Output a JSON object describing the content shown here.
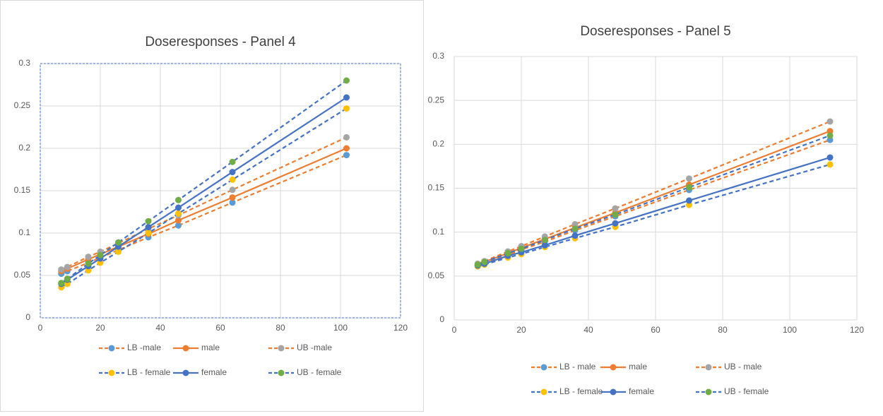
{
  "chart_data": [
    {
      "type": "line",
      "title": "Doseresponses - Panel 4",
      "x": [
        7,
        9,
        16,
        20,
        26,
        36,
        46,
        64,
        102
      ],
      "xlim": [
        0,
        120
      ],
      "xticks": [
        0,
        20,
        40,
        60,
        80,
        100,
        120
      ],
      "ylim": [
        0,
        0.3
      ],
      "yticks": [
        0,
        0.05,
        0.1,
        0.15,
        0.2,
        0.25,
        0.3
      ],
      "grid": true,
      "series": [
        {
          "name": "LB -male",
          "color": "#ED7D31",
          "marker_color": "#5B9BD5",
          "dashed": true,
          "values": [
            0.052,
            0.055,
            0.065,
            0.071,
            0.08,
            0.095,
            0.109,
            0.136,
            0.192
          ]
        },
        {
          "name": "male",
          "color": "#ED7D31",
          "marker_color": "#ED7D31",
          "dashed": false,
          "values": [
            0.055,
            0.058,
            0.069,
            0.075,
            0.084,
            0.099,
            0.115,
            0.142,
            0.2
          ]
        },
        {
          "name": "UB -male",
          "color": "#ED7D31",
          "marker_color": "#A5A5A5",
          "dashed": true,
          "values": [
            0.057,
            0.06,
            0.072,
            0.078,
            0.088,
            0.105,
            0.121,
            0.151,
            0.213
          ]
        },
        {
          "name": "LB - female",
          "color": "#4472C4",
          "marker_color": "#FFC000",
          "dashed": true,
          "values": [
            0.036,
            0.04,
            0.056,
            0.065,
            0.078,
            0.1,
            0.123,
            0.163,
            0.247
          ]
        },
        {
          "name": "female",
          "color": "#4472C4",
          "marker_color": "#4472C4",
          "dashed": false,
          "values": [
            0.04,
            0.045,
            0.061,
            0.07,
            0.084,
            0.107,
            0.13,
            0.172,
            0.26
          ]
        },
        {
          "name": "UB - female",
          "color": "#4472C4",
          "marker_color": "#70AD47",
          "dashed": true,
          "values": [
            0.041,
            0.046,
            0.064,
            0.074,
            0.089,
            0.114,
            0.139,
            0.184,
            0.28
          ]
        }
      ]
    },
    {
      "type": "line",
      "title": "Doseresponses - Panel 5",
      "x": [
        7,
        9,
        16,
        20,
        27,
        36,
        48,
        70,
        112
      ],
      "xlim": [
        0,
        120
      ],
      "xticks": [
        0,
        20,
        40,
        60,
        80,
        100,
        120
      ],
      "ylim": [
        0,
        0.3
      ],
      "yticks": [
        0,
        0.05,
        0.1,
        0.15,
        0.2,
        0.25,
        0.3
      ],
      "grid": true,
      "series": [
        {
          "name": "LB - male",
          "color": "#ED7D31",
          "marker_color": "#5B9BD5",
          "dashed": true,
          "values": [
            0.062,
            0.065,
            0.074,
            0.08,
            0.089,
            0.102,
            0.118,
            0.148,
            0.205
          ]
        },
        {
          "name": "male",
          "color": "#ED7D31",
          "marker_color": "#ED7D31",
          "dashed": false,
          "values": [
            0.063,
            0.066,
            0.076,
            0.082,
            0.092,
            0.105,
            0.122,
            0.154,
            0.215
          ]
        },
        {
          "name": "UB - male",
          "color": "#ED7D31",
          "marker_color": "#A5A5A5",
          "dashed": true,
          "values": [
            0.064,
            0.067,
            0.078,
            0.084,
            0.095,
            0.109,
            0.127,
            0.161,
            0.226
          ]
        },
        {
          "name": "LB - female",
          "color": "#4472C4",
          "marker_color": "#FFC000",
          "dashed": true,
          "values": [
            0.061,
            0.063,
            0.071,
            0.075,
            0.083,
            0.093,
            0.106,
            0.131,
            0.177
          ]
        },
        {
          "name": "female",
          "color": "#4472C4",
          "marker_color": "#4472C4",
          "dashed": false,
          "values": [
            0.062,
            0.064,
            0.073,
            0.077,
            0.085,
            0.096,
            0.11,
            0.136,
            0.185
          ]
        },
        {
          "name": "UB - female",
          "color": "#4472C4",
          "marker_color": "#70AD47",
          "dashed": true,
          "values": [
            0.063,
            0.066,
            0.076,
            0.081,
            0.091,
            0.104,
            0.12,
            0.151,
            0.21
          ]
        }
      ]
    }
  ]
}
